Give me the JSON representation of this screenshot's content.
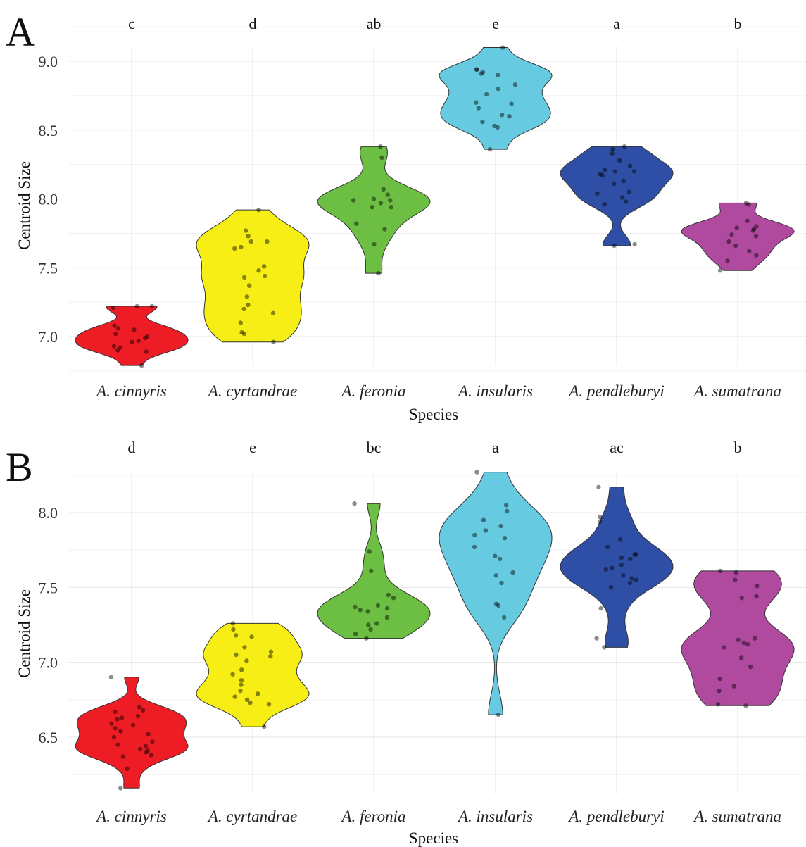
{
  "colors": {
    "A. cinnyris": "#ee1c24",
    "A. cyrtandrae": "#f6ee14",
    "A. feronia": "#6cbf42",
    "A. insularis": "#66cbe0",
    "A. pendleburyi": "#2f4fa6",
    "A. sumatrana": "#b04a9f"
  },
  "chart_data": [
    {
      "type": "violin",
      "panel_label": "A",
      "xlabel": "Species",
      "ylabel": "Centroid Size",
      "categories": [
        "A. cinnyris",
        "A. cyrtandrae",
        "A. feronia",
        "A. insularis",
        "A. pendleburyi",
        "A. sumatrana"
      ],
      "yticks": [
        7.0,
        7.5,
        8.0,
        8.5,
        9.0
      ],
      "ytick_labels": [
        "7.0",
        "7.5",
        "8.0",
        "8.5",
        "9.0"
      ],
      "ylim": [
        6.75,
        9.25
      ],
      "grid": true,
      "significance_letters": [
        "c",
        "d",
        "ab",
        "e",
        "a",
        "b"
      ],
      "groups": [
        {
          "category": "A. cinnyris",
          "min": 6.79,
          "max": 7.22,
          "points": [
            7.22,
            7.22,
            7.21,
            7.08,
            7.06,
            7.05,
            7.02,
            7.0,
            6.99,
            6.97,
            6.96,
            6.93,
            6.92,
            6.9,
            6.89,
            6.79
          ]
        },
        {
          "category": "A. cyrtandrae",
          "min": 6.96,
          "max": 7.92,
          "points": [
            7.92,
            7.77,
            7.73,
            7.69,
            7.69,
            7.65,
            7.64,
            7.51,
            7.48,
            7.44,
            7.43,
            7.37,
            7.29,
            7.23,
            7.2,
            7.17,
            7.1,
            7.03,
            7.02,
            6.96
          ]
        },
        {
          "category": "A. feronia",
          "min": 7.46,
          "max": 8.38,
          "points": [
            8.38,
            8.3,
            8.07,
            8.03,
            8.0,
            7.99,
            7.99,
            7.97,
            7.94,
            7.94,
            7.82,
            7.78,
            7.67,
            7.46
          ]
        },
        {
          "category": "A. insularis",
          "min": 8.36,
          "max": 9.1,
          "points": [
            9.1,
            8.94,
            8.94,
            8.92,
            8.91,
            8.9,
            8.83,
            8.8,
            8.76,
            8.7,
            8.69,
            8.66,
            8.61,
            8.6,
            8.56,
            8.53,
            8.52,
            8.36
          ]
        },
        {
          "category": "A. pendleburyi",
          "min": 7.66,
          "max": 8.38,
          "points": [
            8.38,
            8.36,
            8.33,
            8.28,
            8.24,
            8.21,
            8.2,
            8.2,
            8.18,
            8.17,
            8.13,
            8.11,
            8.05,
            8.04,
            8.01,
            7.98,
            7.96,
            7.67,
            7.66
          ]
        },
        {
          "category": "A. sumatrana",
          "min": 7.48,
          "max": 7.97,
          "points": [
            7.97,
            7.96,
            7.84,
            7.8,
            7.79,
            7.78,
            7.77,
            7.74,
            7.73,
            7.69,
            7.66,
            7.62,
            7.59,
            7.55,
            7.48
          ]
        }
      ]
    },
    {
      "type": "violin",
      "panel_label": "B",
      "xlabel": "Species",
      "ylabel": "Centroid Size",
      "categories": [
        "A. cinnyris",
        "A. cyrtandrae",
        "A. feronia",
        "A. insularis",
        "A. pendleburyi",
        "A. sumatrana"
      ],
      "yticks": [
        6.5,
        7.0,
        7.5,
        8.0
      ],
      "ytick_labels": [
        "6.5",
        "7.0",
        "7.5",
        "8.0"
      ],
      "ylim": [
        6.12,
        8.3
      ],
      "grid": true,
      "significance_letters": [
        "d",
        "e",
        "bc",
        "a",
        "ac",
        "b"
      ],
      "groups": [
        {
          "category": "A. cinnyris",
          "min": 6.16,
          "max": 6.9,
          "points": [
            6.9,
            6.7,
            6.68,
            6.67,
            6.64,
            6.63,
            6.62,
            6.59,
            6.58,
            6.56,
            6.54,
            6.52,
            6.5,
            6.47,
            6.45,
            6.44,
            6.42,
            6.41,
            6.4,
            6.38,
            6.37,
            6.29,
            6.16
          ]
        },
        {
          "category": "A. cyrtandrae",
          "min": 6.57,
          "max": 7.26,
          "points": [
            7.26,
            7.22,
            7.18,
            7.17,
            7.1,
            7.07,
            7.05,
            7.04,
            7.01,
            6.95,
            6.92,
            6.88,
            6.85,
            6.81,
            6.79,
            6.77,
            6.75,
            6.73,
            6.72,
            6.57
          ]
        },
        {
          "category": "A. feronia",
          "min": 7.16,
          "max": 8.06,
          "points": [
            8.06,
            7.74,
            7.61,
            7.45,
            7.43,
            7.38,
            7.37,
            7.36,
            7.35,
            7.34,
            7.3,
            7.26,
            7.25,
            7.22,
            7.19,
            7.16
          ]
        },
        {
          "category": "A. insularis",
          "min": 6.65,
          "max": 8.27,
          "points": [
            8.27,
            8.05,
            8.01,
            7.95,
            7.91,
            7.88,
            7.85,
            7.83,
            7.77,
            7.71,
            7.69,
            7.6,
            7.58,
            7.53,
            7.39,
            7.38,
            7.3,
            6.65
          ]
        },
        {
          "category": "A. pendleburyi",
          "min": 7.1,
          "max": 8.17,
          "points": [
            8.17,
            7.97,
            7.94,
            7.82,
            7.77,
            7.72,
            7.72,
            7.7,
            7.69,
            7.65,
            7.63,
            7.62,
            7.58,
            7.56,
            7.55,
            7.53,
            7.5,
            7.36,
            7.16,
            7.1
          ]
        },
        {
          "category": "A. sumatrana",
          "min": 6.71,
          "max": 7.61,
          "points": [
            7.61,
            7.6,
            7.55,
            7.51,
            7.44,
            7.43,
            7.16,
            7.15,
            7.13,
            7.12,
            7.1,
            7.03,
            6.97,
            6.89,
            6.84,
            6.81,
            6.72,
            6.71
          ]
        }
      ]
    }
  ]
}
